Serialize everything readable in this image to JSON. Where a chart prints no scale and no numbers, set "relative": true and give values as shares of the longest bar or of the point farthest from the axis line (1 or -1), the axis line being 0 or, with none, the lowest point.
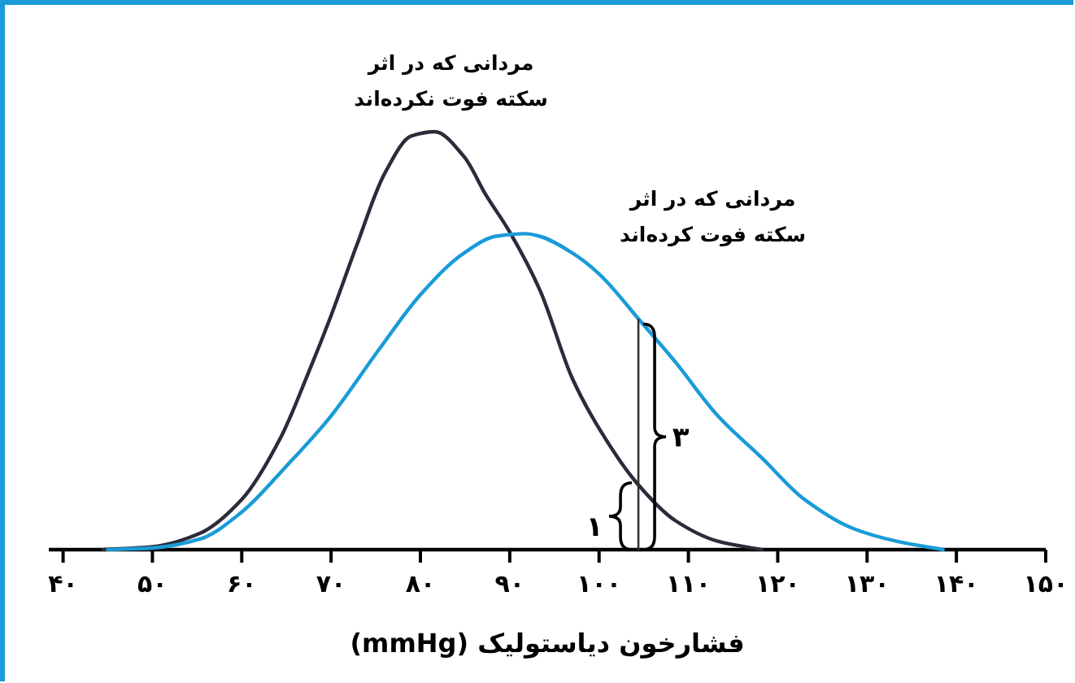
{
  "chart_data": {
    "type": "line",
    "relative": true,
    "xlabel": "فشارخون دیاستولیک (mmHg)",
    "xlim": [
      38.4,
      150
    ],
    "tick_labels": "x",
    "xticks": [
      {
        "value": 40,
        "label": "۴۰"
      },
      {
        "value": 50,
        "label": "۵۰"
      },
      {
        "value": 60,
        "label": "۶۰"
      },
      {
        "value": 70,
        "label": "۷۰"
      },
      {
        "value": 80,
        "label": "۸۰"
      },
      {
        "value": 90,
        "label": "۹۰"
      },
      {
        "value": 100,
        "label": "۱۰۰"
      },
      {
        "value": 110,
        "label": "۱۱۰"
      },
      {
        "value": 120,
        "label": "۱۲۰"
      },
      {
        "value": 130,
        "label": "۱۳۰"
      },
      {
        "value": 140,
        "label": "۱۴۰"
      },
      {
        "value": 150,
        "label": "۱۵۰"
      }
    ],
    "series": [
      {
        "name": "مردانی که در اثر\nسکته فوت نکرده‌اند",
        "color": "#2b2b3a",
        "x": [
          44.5,
          50,
          55.4,
          60,
          64.4,
          67.4,
          70,
          72.9,
          76,
          79,
          81.6,
          84.9,
          87.3,
          90,
          93.4,
          97,
          100,
          104.2,
          108.5,
          113.3,
          118.2
        ],
        "values": [
          0,
          0.007,
          0.04,
          0.12,
          0.27,
          0.42,
          0.56,
          0.73,
          0.9,
          0.99,
          1,
          0.94,
          0.85,
          0.76,
          0.62,
          0.41,
          0.29,
          0.16,
          0.07,
          0.02,
          0
        ]
      },
      {
        "name": "مردانی که در اثر\nسکته فوت کرده‌اند",
        "color": "#1a9bd7",
        "x": [
          45,
          50,
          55.4,
          60,
          65,
          70,
          75.4,
          80,
          84.9,
          88.5,
          91.8,
          93.3,
          97,
          100,
          104.5,
          108.5,
          113.3,
          118.2,
          123,
          128.5,
          133.3,
          138.5
        ],
        "values": [
          0,
          0.004,
          0.026,
          0.09,
          0.2,
          0.32,
          0.48,
          0.61,
          0.71,
          0.75,
          0.756,
          0.75,
          0.71,
          0.66,
          0.55,
          0.45,
          0.32,
          0.22,
          0.12,
          0.05,
          0.02,
          0
        ]
      },
      {
        "type": "line",
        "color": "#333333",
        "x": [
          104.4,
          104.4
        ],
        "values": [
          0,
          0.55
        ]
      }
    ],
    "annotations": [
      {
        "text": "۱",
        "x": 104.4,
        "y": 0.08
      },
      {
        "text": "۳",
        "x": 104.4,
        "y": 0.27
      }
    ]
  }
}
